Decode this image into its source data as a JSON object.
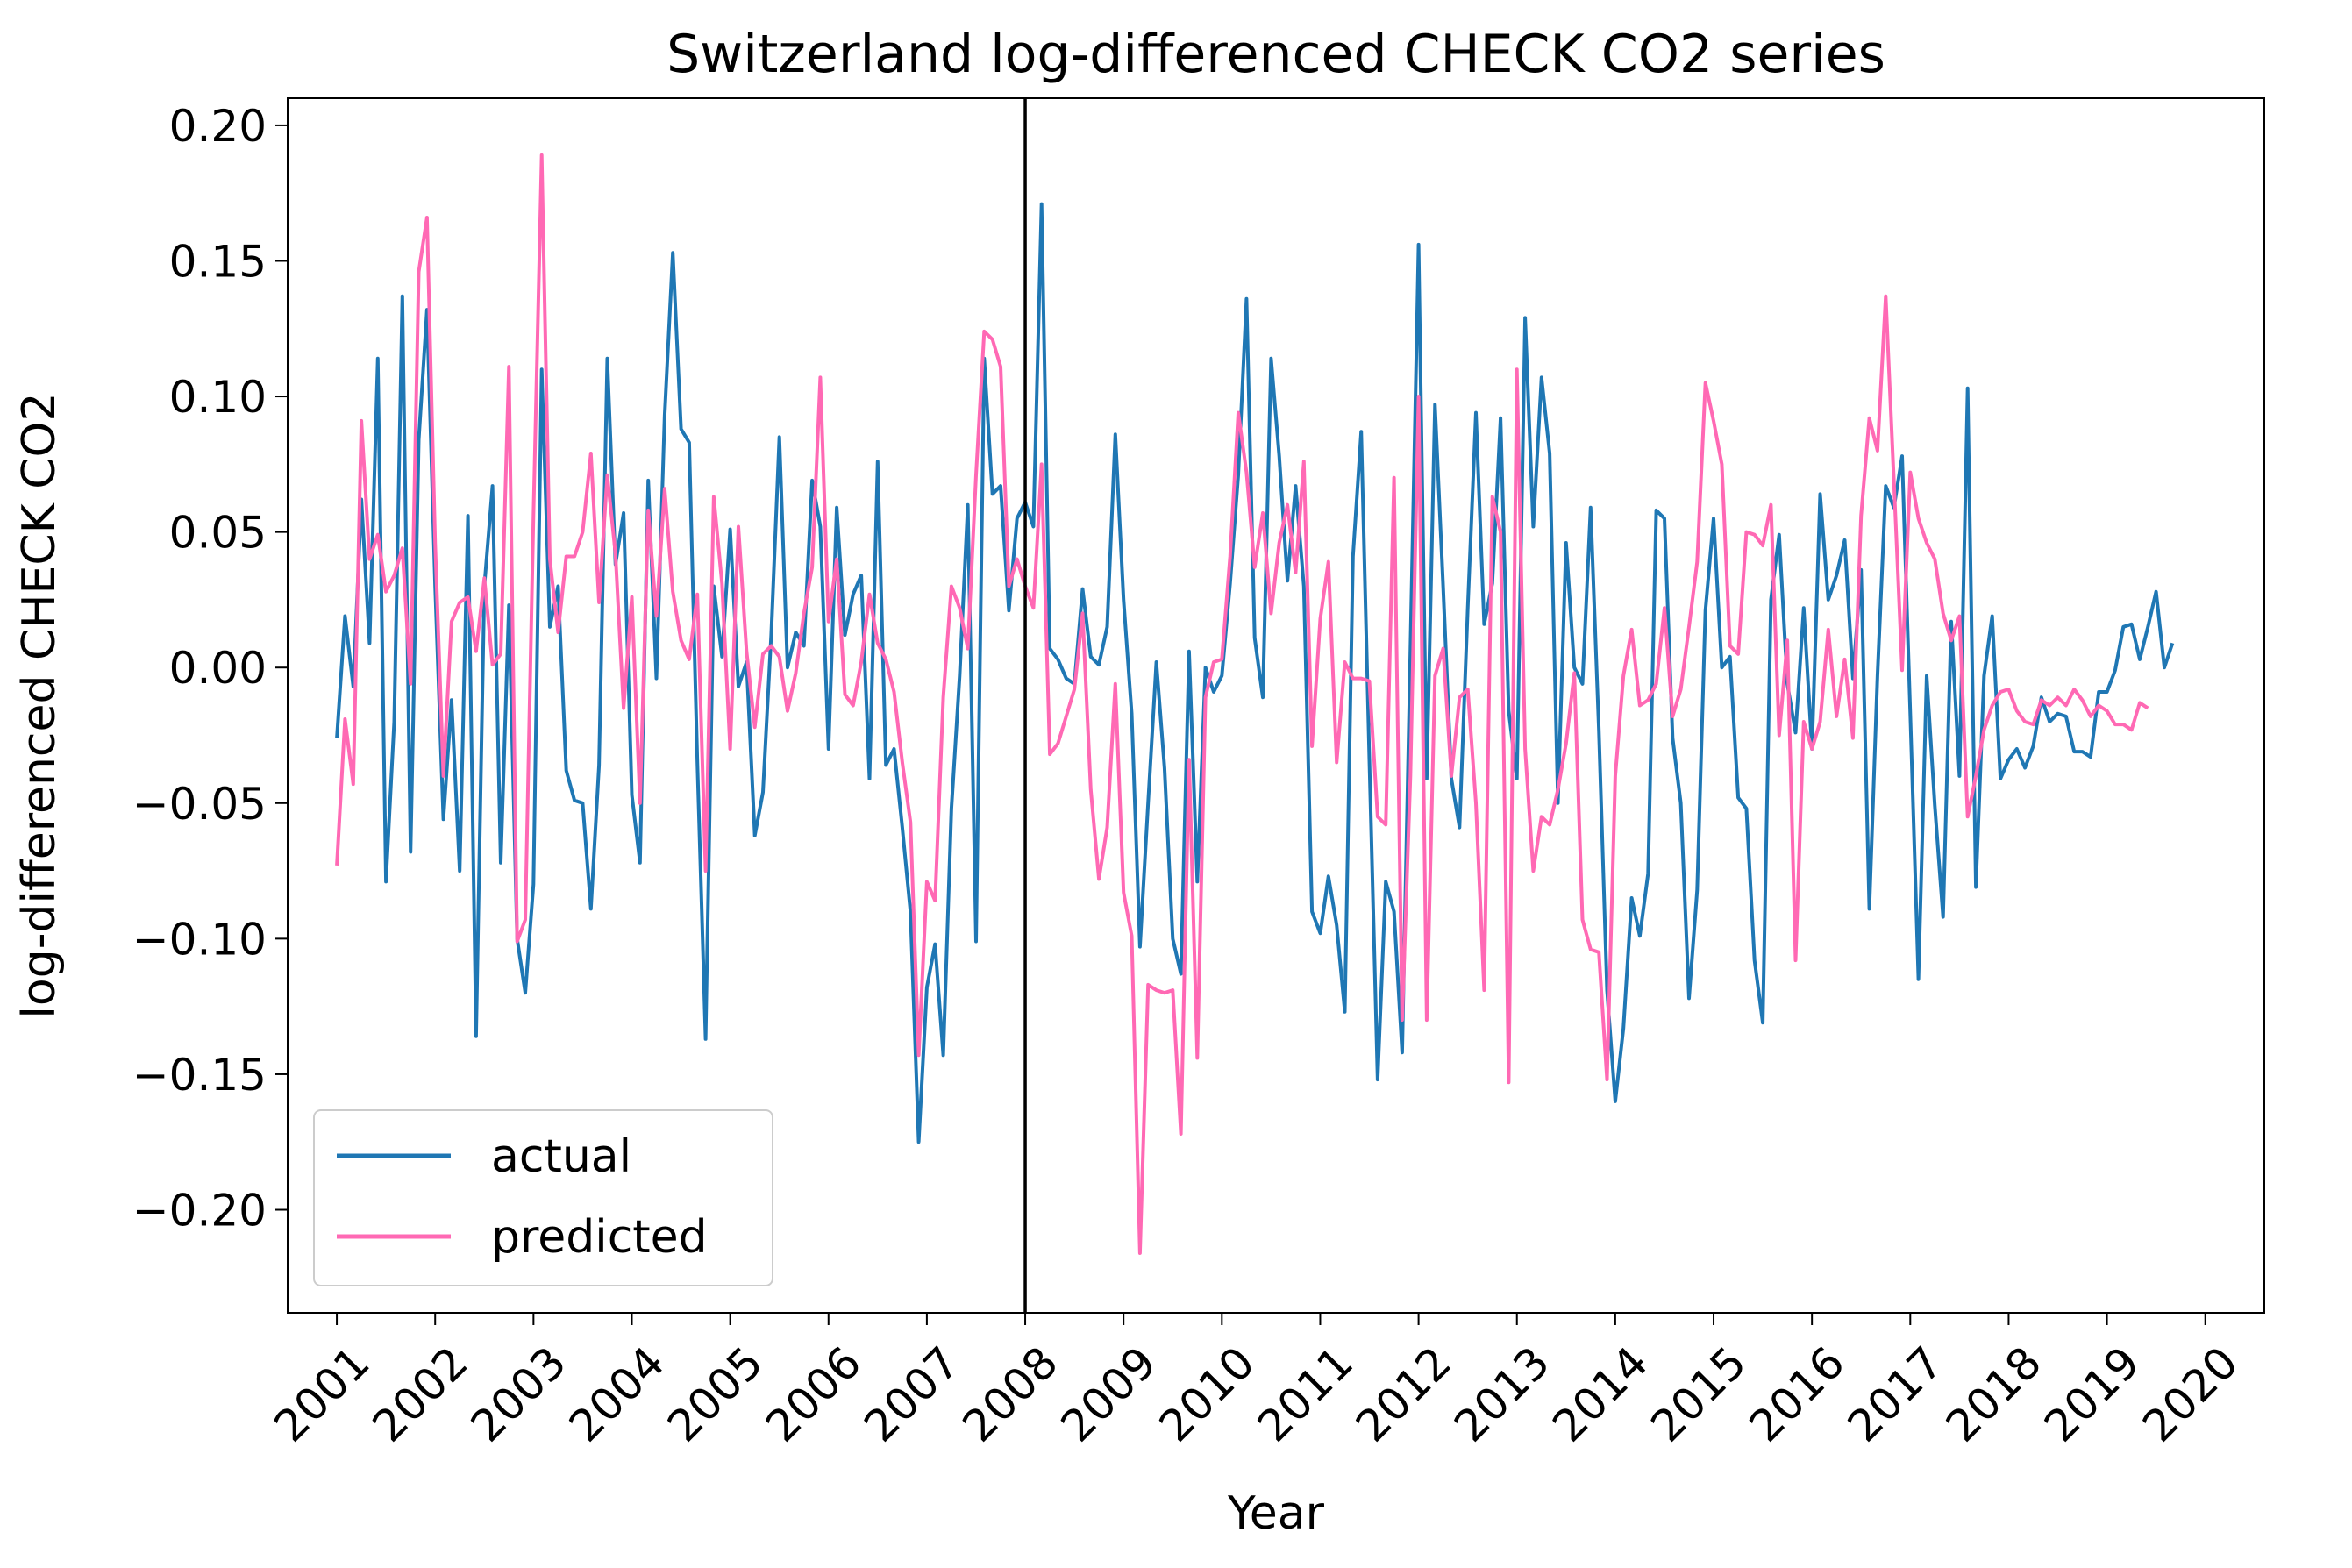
{
  "chart_data": {
    "type": "line",
    "title": "Switzerland log-differenced CHECK CO2 series",
    "xlabel": "Year",
    "ylabel": "log-differenced CHECK CO2",
    "xlim": [
      2000.5,
      2020.6
    ],
    "ylim": [
      -0.238,
      0.21
    ],
    "x_ticks": [
      2001,
      2002,
      2003,
      2004,
      2005,
      2006,
      2007,
      2008,
      2009,
      2010,
      2011,
      2012,
      2013,
      2014,
      2015,
      2016,
      2017,
      2018,
      2019,
      2020
    ],
    "x_tick_labels": [
      "2001",
      "2002",
      "2003",
      "2004",
      "2005",
      "2006",
      "2007",
      "2008",
      "2009",
      "2010",
      "2011",
      "2012",
      "2013",
      "2014",
      "2015",
      "2016",
      "2017",
      "2018",
      "2019",
      "2020"
    ],
    "y_ticks": [
      -0.2,
      -0.15,
      -0.1,
      -0.05,
      0.0,
      0.05,
      0.1,
      0.15,
      0.2
    ],
    "y_tick_labels": [
      "−0.20",
      "−0.15",
      "−0.10",
      "−0.05",
      "0.00",
      "0.05",
      "0.10",
      "0.15",
      "0.20"
    ],
    "vline_x": 2008,
    "legend_position": "lower-left",
    "x_start": 2001,
    "x_step": 0.08333333,
    "series": [
      {
        "name": "actual",
        "color": "#1f77b4",
        "values": [
          -0.026,
          0.019,
          -0.007,
          0.062,
          0.009,
          0.114,
          -0.079,
          -0.02,
          0.137,
          -0.068,
          0.084,
          0.132,
          0.03,
          -0.056,
          -0.012,
          -0.075,
          0.056,
          -0.136,
          0.03,
          0.067,
          -0.072,
          0.023,
          -0.1,
          -0.12,
          -0.08,
          0.11,
          0.015,
          0.03,
          -0.038,
          -0.049,
          -0.05,
          -0.089,
          -0.036,
          0.114,
          0.038,
          0.057,
          -0.047,
          -0.072,
          0.069,
          -0.004,
          0.093,
          0.153,
          0.088,
          0.083,
          -0.035,
          -0.137,
          0.03,
          0.004,
          0.051,
          -0.007,
          0.002,
          -0.062,
          -0.046,
          0.012,
          0.085,
          0.0,
          0.013,
          0.008,
          0.069,
          0.052,
          -0.03,
          0.059,
          0.012,
          0.027,
          0.034,
          -0.041,
          0.076,
          -0.036,
          -0.03,
          -0.059,
          -0.09,
          -0.175,
          -0.118,
          -0.102,
          -0.143,
          -0.052,
          -0.003,
          0.06,
          -0.101,
          0.114,
          0.064,
          0.067,
          0.021,
          0.055,
          0.061,
          0.052,
          0.171,
          0.007,
          0.003,
          -0.004,
          -0.006,
          0.029,
          0.004,
          0.001,
          0.015,
          0.086,
          0.025,
          -0.017,
          -0.103,
          -0.05,
          0.002,
          -0.037,
          -0.1,
          -0.113,
          0.006,
          -0.079,
          0.0,
          -0.009,
          -0.003,
          0.031,
          0.071,
          0.136,
          0.011,
          -0.011,
          0.114,
          0.078,
          0.032,
          0.067,
          0.03,
          -0.09,
          -0.098,
          -0.077,
          -0.095,
          -0.127,
          0.041,
          0.087,
          -0.034,
          -0.152,
          -0.079,
          -0.09,
          -0.142,
          0.007,
          0.156,
          -0.041,
          0.097,
          0.03,
          -0.041,
          -0.059,
          0.022,
          0.094,
          0.016,
          0.031,
          0.092,
          -0.016,
          -0.041,
          0.129,
          0.052,
          0.107,
          0.079,
          -0.05,
          0.046,
          0.0,
          -0.006,
          0.059,
          -0.023,
          -0.119,
          -0.16,
          -0.133,
          -0.085,
          -0.099,
          -0.076,
          0.058,
          0.055,
          -0.026,
          -0.05,
          -0.122,
          -0.082,
          0.021,
          0.055,
          0.0,
          0.004,
          -0.048,
          -0.052,
          -0.108,
          -0.131,
          0.025,
          0.049,
          -0.006,
          -0.024,
          0.022,
          -0.03,
          0.064,
          0.025,
          0.034,
          0.047,
          -0.004,
          0.036,
          -0.089,
          -0.003,
          0.067,
          0.059,
          0.078,
          -0.017,
          -0.115,
          -0.003,
          -0.051,
          -0.092,
          0.017,
          -0.04,
          0.103,
          -0.081,
          -0.003,
          0.019,
          -0.041,
          -0.034,
          -0.03,
          -0.037,
          -0.029,
          -0.011,
          -0.02,
          -0.017,
          -0.018,
          -0.031,
          -0.031,
          -0.033,
          -0.009,
          -0.009,
          -0.001,
          0.015,
          0.016,
          0.003,
          0.015,
          0.028,
          0.0,
          0.009
        ]
      },
      {
        "name": "predicted",
        "color": "#ff69b4",
        "values": [
          -0.073,
          -0.019,
          -0.043,
          0.091,
          0.04,
          0.049,
          0.028,
          0.034,
          0.044,
          -0.006,
          0.146,
          0.166,
          0.046,
          -0.04,
          0.017,
          0.024,
          0.026,
          0.006,
          0.033,
          0.001,
          0.005,
          0.111,
          -0.101,
          -0.093,
          0.056,
          0.189,
          0.04,
          0.013,
          0.041,
          0.041,
          0.05,
          0.079,
          0.024,
          0.071,
          0.042,
          -0.015,
          0.026,
          -0.05,
          0.058,
          0.019,
          0.066,
          0.028,
          0.01,
          0.003,
          0.027,
          -0.075,
          0.063,
          0.031,
          -0.03,
          0.052,
          0.006,
          -0.022,
          0.005,
          0.008,
          0.004,
          -0.016,
          -0.002,
          0.02,
          0.037,
          0.107,
          0.017,
          0.04,
          -0.01,
          -0.014,
          0.002,
          0.027,
          0.009,
          0.003,
          -0.009,
          -0.035,
          -0.057,
          -0.143,
          -0.079,
          -0.086,
          -0.011,
          0.03,
          0.022,
          0.007,
          0.071,
          0.124,
          0.121,
          0.111,
          0.03,
          0.04,
          0.03,
          0.022,
          0.075,
          -0.032,
          -0.028,
          -0.018,
          -0.008,
          0.02,
          -0.045,
          -0.078,
          -0.059,
          -0.006,
          -0.083,
          -0.099,
          -0.216,
          -0.117,
          -0.119,
          -0.12,
          -0.119,
          -0.172,
          -0.034,
          -0.144,
          -0.011,
          0.002,
          0.003,
          0.041,
          0.094,
          0.072,
          0.037,
          0.057,
          0.02,
          0.046,
          0.06,
          0.035,
          0.076,
          -0.029,
          0.018,
          0.039,
          -0.035,
          0.002,
          -0.004,
          -0.004,
          -0.005,
          -0.055,
          -0.058,
          0.07,
          -0.13,
          -0.04,
          0.1,
          -0.13,
          -0.003,
          0.007,
          -0.04,
          -0.011,
          -0.008,
          -0.05,
          -0.119,
          0.063,
          0.05,
          -0.153,
          0.11,
          -0.03,
          -0.075,
          -0.055,
          -0.058,
          -0.045,
          -0.028,
          -0.002,
          -0.093,
          -0.104,
          -0.105,
          -0.152,
          -0.04,
          -0.003,
          0.014,
          -0.014,
          -0.012,
          -0.006,
          0.022,
          -0.018,
          -0.008,
          0.015,
          0.039,
          0.105,
          0.091,
          0.075,
          0.008,
          0.005,
          0.05,
          0.049,
          0.045,
          0.06,
          -0.025,
          0.01,
          -0.108,
          -0.02,
          -0.03,
          -0.02,
          0.014,
          -0.018,
          0.003,
          -0.026,
          0.056,
          0.092,
          0.08,
          0.137,
          0.069,
          -0.001,
          0.072,
          0.055,
          0.046,
          0.04,
          0.02,
          0.01,
          0.019,
          -0.055,
          -0.04,
          -0.023,
          -0.014,
          -0.009,
          -0.008,
          -0.016,
          -0.02,
          -0.021,
          -0.012,
          -0.014,
          -0.011,
          -0.014,
          -0.008,
          -0.012,
          -0.018,
          -0.014,
          -0.016,
          -0.021,
          -0.021,
          -0.023,
          -0.013,
          -0.015
        ]
      }
    ]
  }
}
